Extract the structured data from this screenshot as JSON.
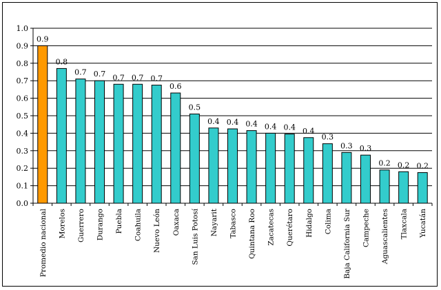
{
  "chart_data": {
    "type": "bar",
    "title": "",
    "xlabel": "",
    "ylabel": "",
    "ylim": [
      0,
      1.0
    ],
    "yticks": [
      "0.0",
      "0.1",
      "0.2",
      "0.3",
      "0.4",
      "0.5",
      "0.6",
      "0.7",
      "0.8",
      "0.9",
      "1.0"
    ],
    "grid": true,
    "categories": [
      "Promedio nacional",
      "Morelos",
      "Guerrero",
      "Durango",
      "Puebla",
      "Coahuila",
      "Nuevo León",
      "Oaxaca",
      "San Luis Potosí",
      "Nayarit",
      "Tabasco",
      "Quintana Roo",
      "Zacatecas",
      "Querétaro",
      "Hidalgo",
      "Colima",
      "Baja California Sur",
      "Campeche",
      "Aguascalientes",
      "Tlaxcala",
      "Yucatán"
    ],
    "values": [
      0.9,
      0.77,
      0.71,
      0.7,
      0.68,
      0.68,
      0.675,
      0.63,
      0.51,
      0.43,
      0.425,
      0.415,
      0.4,
      0.395,
      0.375,
      0.34,
      0.29,
      0.275,
      0.19,
      0.18,
      0.175
    ],
    "labels": [
      "0.9",
      "0.8",
      "0.7",
      "0.7",
      "0.7",
      "0.7",
      "0.7",
      "0.6",
      "0.5",
      "0.4",
      "0.4",
      "0.4",
      "0.4",
      "0.4",
      "0.4",
      "0.3",
      "0.3",
      "0.3",
      "0.2",
      "0.2",
      "0.2"
    ],
    "colors": {
      "highlight": "#FF9900",
      "bar": "#33CCCC",
      "grid": "#000000"
    }
  }
}
